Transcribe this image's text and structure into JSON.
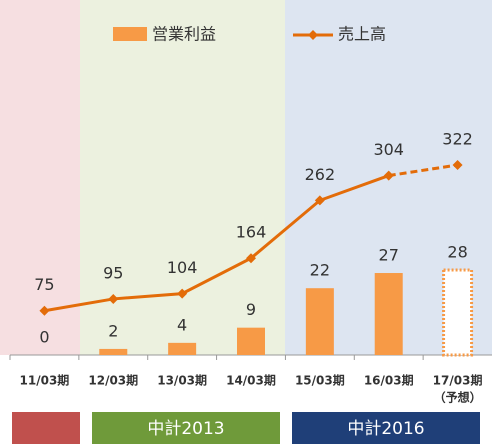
{
  "chart_data": {
    "type": "bar-line",
    "categories": [
      "11/03期",
      "12/03期",
      "13/03期",
      "14/03期",
      "15/03期",
      "16/03期",
      "17/03期"
    ],
    "forecast_label": "（予想）",
    "forecast_index": 6,
    "series": [
      {
        "name": "営業利益",
        "type": "bar",
        "color": "#f79a46",
        "values": [
          0,
          2,
          4,
          9,
          22,
          27,
          28
        ]
      },
      {
        "name": "売上高",
        "type": "line",
        "axis": "y2",
        "color": "#e36c09",
        "values": [
          75,
          95,
          104,
          164,
          262,
          304,
          322
        ]
      }
    ],
    "ylim": [
      0,
      110
    ],
    "y2lim": [
      0,
      566
    ],
    "periods": [
      {
        "label": "中計2013",
        "color": "#6f9a3a"
      },
      {
        "label": "中計2016",
        "color": "#1f3f78"
      }
    ]
  }
}
